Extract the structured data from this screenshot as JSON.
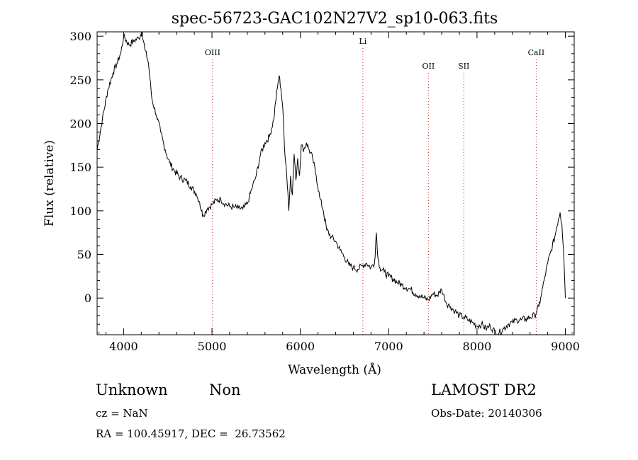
{
  "chart_data": {
    "type": "line",
    "title": "spec-56723-GAC102N27V2_sp10-063.fits",
    "xlabel": "Wavelength (Å)",
    "ylabel": "Flux (relative)",
    "xlim": [
      3700,
      9100
    ],
    "ylim": [
      -42,
      305
    ],
    "xticks": [
      4000,
      5000,
      6000,
      7000,
      8000,
      9000
    ],
    "yticks": [
      0,
      50,
      100,
      150,
      200,
      250,
      300
    ],
    "grid": false,
    "series": [
      {
        "x": [
          3700,
          3760,
          3820,
          3880,
          3930,
          3970,
          4000,
          4060,
          4120,
          4170,
          4210,
          4240,
          4280,
          4320,
          4370,
          4420,
          4470,
          4520,
          4580,
          4640,
          4700,
          4760,
          4820,
          4860,
          4880,
          4900,
          4950,
          5000,
          5050,
          5100,
          5150,
          5200,
          5250,
          5300,
          5350,
          5400,
          5450,
          5500,
          5550,
          5600,
          5650,
          5700,
          5720,
          5740,
          5760,
          5780,
          5800,
          5820,
          5840,
          5860,
          5870,
          5890,
          5910,
          5930,
          5950,
          5970,
          5990,
          6010,
          6040,
          6070,
          6100,
          6140,
          6180,
          6220,
          6260,
          6300,
          6350,
          6400,
          6450,
          6500,
          6550,
          6600,
          6650,
          6700,
          6750,
          6800,
          6840,
          6860,
          6880,
          6900,
          6950,
          7000,
          7050,
          7100,
          7150,
          7200,
          7250,
          7300,
          7350,
          7400,
          7450,
          7500,
          7550,
          7600,
          7650,
          7700,
          7750,
          7800,
          7850,
          7900,
          7950,
          8000,
          8050,
          8100,
          8150,
          8200,
          8250,
          8300,
          8350,
          8400,
          8450,
          8500,
          8550,
          8600,
          8650,
          8700,
          8720,
          8760,
          8800,
          8840,
          8880,
          8900,
          8920,
          8940,
          8960,
          8980,
          9000
        ],
        "y": [
          170,
          205,
          238,
          258,
          270,
          282,
          300,
          290,
          295,
          298,
          305,
          285,
          270,
          228,
          210,
          190,
          170,
          155,
          145,
          138,
          135,
          128,
          120,
          110,
          100,
          95,
          103,
          107,
          112,
          113,
          108,
          105,
          104,
          103,
          102,
          108,
          125,
          140,
          165,
          178,
          185,
          205,
          225,
          240,
          255,
          240,
          220,
          175,
          150,
          120,
          100,
          140,
          118,
          165,
          135,
          160,
          140,
          175,
          170,
          178,
          170,
          160,
          140,
          115,
          100,
          78,
          70,
          65,
          55,
          47,
          38,
          35,
          33,
          37,
          40,
          35,
          40,
          75,
          45,
          35,
          30,
          25,
          22,
          18,
          15,
          12,
          10,
          5,
          3,
          0,
          -2,
          5,
          3,
          10,
          -5,
          -10,
          -15,
          -20,
          -22,
          -25,
          -28,
          -32,
          -30,
          -35,
          -32,
          -38,
          -40,
          -35,
          -30,
          -28,
          -25,
          -25,
          -24,
          -22,
          -20,
          -10,
          0,
          20,
          40,
          55,
          70,
          80,
          90,
          98,
          85,
          55,
          0
        ]
      }
    ],
    "lines": [
      {
        "label": "OIII",
        "x": 5007
      },
      {
        "label": "Li",
        "x": 6708
      },
      {
        "label": "OII",
        "x": 7450
      },
      {
        "label": "SII",
        "x": 7850
      },
      {
        "label": "CaII",
        "x": 8670
      }
    ]
  },
  "info": {
    "class": "Unknown",
    "subclass": "Non",
    "survey": "LAMOST DR2",
    "cz": "cz = NaN",
    "obs_date": "Obs-Date: 20140306",
    "coords": "RA = 100.45917, DEC =  26.73562"
  }
}
